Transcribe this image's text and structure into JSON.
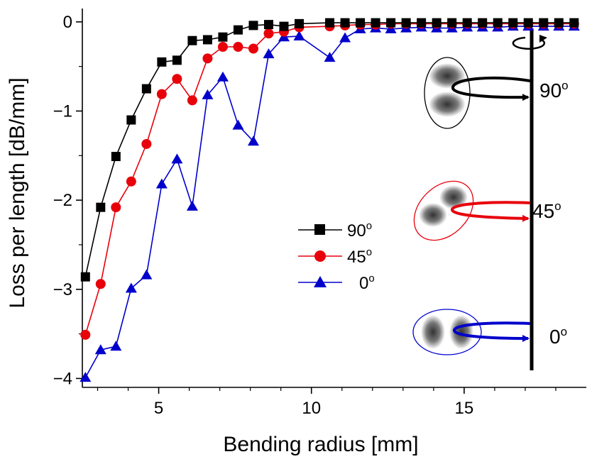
{
  "chart_data": {
    "type": "line",
    "xlabel": "Bending radius [mm]",
    "ylabel": "Loss per length [dB/mm]",
    "xlim": [
      2.5,
      19
    ],
    "ylim": [
      -4.1,
      0.15
    ],
    "xticks": [
      5,
      10,
      15
    ],
    "xtick_labels": [
      "5",
      "10",
      "15"
    ],
    "yticks": [
      0,
      -1,
      -2,
      -3,
      -4
    ],
    "ytick_labels": [
      "0",
      "−1",
      "−2",
      "−3",
      "−4"
    ],
    "series": [
      {
        "name": "90",
        "marker": "square",
        "color": "#000000",
        "x": [
          2.6,
          3.1,
          3.6,
          4.1,
          4.6,
          5.1,
          5.6,
          6.1,
          6.6,
          7.1,
          7.6,
          8.1,
          8.6,
          9.1,
          9.6,
          10.6,
          11.1,
          11.6,
          12.1,
          12.6,
          13.1,
          13.6,
          14.1,
          14.6,
          15.1,
          15.6,
          16.1,
          16.6,
          17.1,
          17.6,
          18.1,
          18.6
        ],
        "y": [
          -2.86,
          -2.08,
          -1.51,
          -1.1,
          -0.75,
          -0.45,
          -0.43,
          -0.21,
          -0.2,
          -0.17,
          -0.09,
          -0.04,
          -0.03,
          -0.05,
          -0.02,
          -0.01,
          -0.01,
          -0.01,
          -0.01,
          -0.01,
          -0.01,
          -0.01,
          -0.01,
          -0.01,
          -0.01,
          -0.01,
          -0.01,
          -0.01,
          -0.01,
          -0.01,
          -0.01,
          -0.01
        ]
      },
      {
        "name": "45",
        "marker": "circle",
        "color": "#e8000b",
        "x": [
          2.6,
          3.1,
          3.6,
          4.1,
          4.6,
          5.1,
          5.6,
          6.1,
          6.6,
          7.1,
          7.6,
          8.1,
          8.6,
          9.1,
          9.6,
          10.6,
          11.1,
          11.6,
          12.1,
          12.6,
          13.1,
          13.6,
          14.1,
          14.6,
          15.1,
          15.6,
          16.1,
          16.6,
          17.1,
          17.6,
          18.1,
          18.6
        ],
        "y": [
          -3.51,
          -2.94,
          -2.08,
          -1.79,
          -1.37,
          -0.81,
          -0.64,
          -0.88,
          -0.41,
          -0.28,
          -0.28,
          -0.3,
          -0.13,
          -0.11,
          -0.06,
          -0.05,
          -0.04,
          -0.03,
          -0.03,
          -0.02,
          -0.02,
          -0.02,
          -0.02,
          -0.02,
          -0.02,
          -0.02,
          -0.02,
          -0.02,
          -0.02,
          -0.02,
          -0.02,
          -0.02
        ]
      },
      {
        "name": "0",
        "marker": "triangle",
        "color": "#0000cc",
        "x": [
          2.6,
          3.1,
          3.6,
          4.1,
          4.6,
          5.1,
          5.6,
          6.1,
          6.6,
          7.1,
          7.6,
          8.1,
          8.6,
          9.1,
          9.6,
          10.6,
          11.1,
          11.6,
          12.1,
          12.6,
          13.1,
          13.6,
          14.1,
          14.6,
          15.1,
          15.6,
          16.1,
          16.6,
          17.1,
          17.6,
          18.1,
          18.6
        ],
        "y": [
          -3.99,
          -3.68,
          -3.64,
          -2.99,
          -2.84,
          -1.82,
          -1.54,
          -2.07,
          -0.82,
          -0.62,
          -1.16,
          -1.34,
          -0.36,
          -0.17,
          -0.16,
          -0.4,
          -0.18,
          -0.08,
          -0.07,
          -0.08,
          -0.07,
          -0.06,
          -0.07,
          -0.07,
          -0.06,
          -0.06,
          -0.06,
          -0.05,
          -0.05,
          -0.05,
          -0.05,
          -0.05
        ]
      }
    ],
    "legend": {
      "placement": "center",
      "entries": [
        "90",
        "45",
        "0"
      ],
      "superscript": "o"
    },
    "annotations": [
      {
        "text": "90",
        "superscript": "o",
        "color": "#000000"
      },
      {
        "text": "45",
        "superscript": "o",
        "color": "#e8000b"
      },
      {
        "text": "0",
        "superscript": "o",
        "color": "#0000cc"
      }
    ]
  }
}
